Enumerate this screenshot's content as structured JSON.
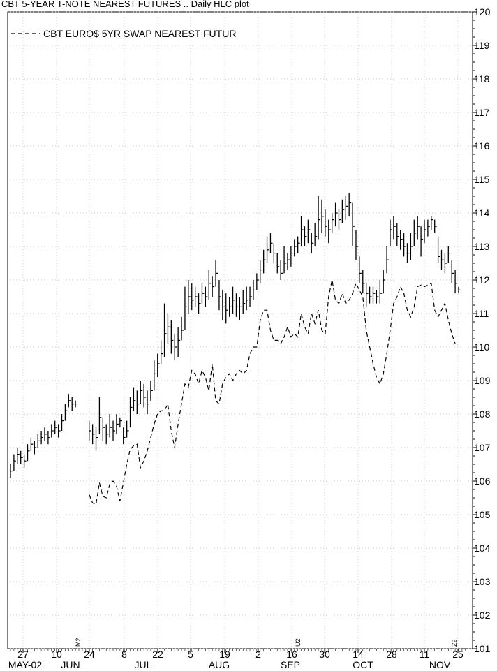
{
  "chart_data": {
    "type": "line",
    "title": "CBT 5-YEAR T-NOTE NEAREST FUTURES .. Daily HLC plot",
    "legend": {
      "position": "top-left",
      "entries": [
        "CBT EURO$ 5YR SWAP NEAREST FUTUR"
      ]
    },
    "y_axis": {
      "position": "right",
      "ylim": [
        101,
        120
      ],
      "ticks": [
        101,
        102,
        103,
        104,
        105,
        106,
        107,
        108,
        109,
        110,
        111,
        112,
        113,
        114,
        115,
        116,
        117,
        118,
        119,
        120
      ]
    },
    "x_axis": {
      "day_labels": [
        "27",
        "10",
        "24",
        "8",
        "22",
        "5",
        "19",
        "2",
        "16",
        "30",
        "14",
        "28",
        "11",
        "25"
      ],
      "month_labels": [
        "MAY-02",
        "JUN",
        "JUL",
        "AUG",
        "SEP",
        "OCT",
        "NOV"
      ],
      "contract_marks": [
        "M2",
        "U2",
        "Z2"
      ]
    },
    "grid": true,
    "series": [
      {
        "kind": "hlc",
        "bars": [
          [
            106.5,
            106.1,
            106.3
          ],
          [
            106.8,
            106.3,
            106.6
          ],
          [
            107.0,
            106.5,
            106.8
          ],
          [
            106.9,
            106.5,
            106.7
          ],
          [
            106.8,
            106.4,
            106.6
          ],
          [
            107.1,
            106.6,
            106.9
          ],
          [
            107.3,
            106.9,
            107.1
          ],
          [
            107.2,
            106.8,
            107.0
          ],
          [
            107.4,
            107.0,
            107.2
          ],
          [
            107.5,
            107.1,
            107.3
          ],
          [
            107.6,
            107.2,
            107.4
          ],
          [
            107.5,
            107.1,
            107.3
          ],
          [
            107.7,
            107.3,
            107.5
          ],
          [
            107.8,
            107.4,
            107.6
          ],
          [
            107.7,
            107.3,
            107.5
          ],
          [
            108.0,
            107.5,
            107.8
          ],
          [
            108.3,
            107.8,
            108.1
          ],
          [
            108.6,
            108.2,
            108.4
          ],
          [
            108.5,
            108.1,
            108.3
          ],
          [
            108.4,
            108.2,
            108.3
          ],
          [
            null,
            null,
            null
          ],
          [
            null,
            null,
            null
          ],
          [
            null,
            null,
            null
          ],
          [
            107.8,
            107.2,
            107.5
          ],
          [
            107.7,
            107.1,
            107.4
          ],
          [
            107.6,
            106.9,
            107.3
          ],
          [
            108.5,
            107.4,
            107.9
          ],
          [
            107.9,
            107.2,
            107.6
          ],
          [
            107.7,
            107.1,
            107.4
          ],
          [
            108.0,
            107.3,
            107.6
          ],
          [
            107.8,
            107.2,
            107.5
          ],
          [
            108.0,
            107.4,
            107.7
          ],
          [
            107.9,
            107.6,
            107.8
          ],
          [
            107.6,
            107.1,
            107.3
          ],
          [
            107.8,
            107.3,
            107.5
          ],
          [
            108.5,
            107.6,
            108.2
          ],
          [
            108.8,
            108.1,
            108.4
          ],
          [
            108.7,
            108.0,
            108.3
          ],
          [
            109.0,
            108.3,
            108.7
          ],
          [
            108.9,
            108.2,
            108.5
          ],
          [
            108.7,
            108.0,
            108.3
          ],
          [
            109.0,
            108.4,
            108.7
          ],
          [
            109.6,
            108.7,
            109.2
          ],
          [
            109.8,
            109.1,
            109.5
          ],
          [
            110.2,
            109.5,
            109.8
          ],
          [
            111.3,
            109.7,
            110.4
          ],
          [
            111.0,
            110.1,
            110.6
          ],
          [
            110.8,
            109.8,
            110.2
          ],
          [
            110.4,
            109.6,
            110.0
          ],
          [
            110.6,
            109.7,
            110.2
          ],
          [
            110.9,
            110.2,
            110.5
          ],
          [
            111.8,
            110.5,
            111.2
          ],
          [
            112.0,
            111.0,
            111.5
          ],
          [
            111.9,
            111.1,
            111.4
          ],
          [
            111.8,
            111.2,
            111.5
          ],
          [
            111.6,
            111.0,
            111.3
          ],
          [
            111.9,
            111.3,
            111.6
          ],
          [
            111.8,
            111.2,
            111.5
          ],
          [
            112.3,
            111.4,
            111.9
          ],
          [
            112.1,
            111.5,
            111.8
          ],
          [
            112.6,
            111.8,
            112.2
          ],
          [
            112.0,
            111.1,
            111.5
          ],
          [
            111.7,
            110.8,
            111.2
          ],
          [
            111.6,
            110.7,
            111.1
          ],
          [
            111.5,
            110.9,
            111.2
          ],
          [
            111.8,
            111.0,
            111.4
          ],
          [
            111.6,
            110.9,
            111.2
          ],
          [
            111.5,
            110.8,
            111.2
          ],
          [
            111.7,
            111.0,
            111.3
          ],
          [
            111.8,
            111.1,
            111.4
          ],
          [
            111.8,
            111.2,
            111.5
          ],
          [
            112.0,
            111.4,
            111.7
          ],
          [
            112.2,
            111.7,
            112.0
          ],
          [
            112.6,
            111.9,
            112.3
          ],
          [
            112.9,
            112.2,
            112.6
          ],
          [
            113.3,
            112.5,
            112.9
          ],
          [
            113.4,
            112.8,
            113.1
          ],
          [
            113.1,
            112.5,
            112.8
          ],
          [
            112.8,
            112.2,
            112.4
          ],
          [
            112.6,
            112.0,
            112.2
          ],
          [
            113.0,
            112.2,
            112.5
          ],
          [
            112.8,
            112.3,
            112.6
          ],
          [
            113.0,
            112.4,
            112.8
          ],
          [
            113.2,
            112.7,
            113.0
          ],
          [
            113.3,
            112.8,
            113.1
          ],
          [
            113.9,
            113.0,
            113.5
          ],
          [
            113.6,
            113.0,
            113.3
          ],
          [
            113.8,
            113.1,
            113.5
          ],
          [
            113.4,
            112.8,
            113.1
          ],
          [
            113.7,
            113.0,
            113.3
          ],
          [
            114.5,
            113.2,
            113.8
          ],
          [
            114.4,
            113.4,
            113.9
          ],
          [
            114.1,
            113.3,
            113.6
          ],
          [
            113.8,
            113.1,
            113.5
          ],
          [
            114.0,
            113.4,
            113.8
          ],
          [
            114.3,
            113.6,
            114.0
          ],
          [
            114.1,
            113.5,
            113.8
          ],
          [
            114.4,
            113.7,
            114.1
          ],
          [
            114.5,
            113.8,
            114.2
          ],
          [
            114.6,
            113.9,
            114.3
          ],
          [
            114.3,
            113.0,
            113.6
          ],
          [
            113.5,
            112.6,
            113.0
          ],
          [
            112.7,
            111.9,
            112.2
          ],
          [
            112.3,
            111.6,
            111.9
          ],
          [
            111.9,
            111.2,
            111.6
          ],
          [
            111.8,
            111.3,
            111.5
          ],
          [
            111.8,
            111.3,
            111.6
          ],
          [
            111.7,
            111.3,
            111.5
          ],
          [
            112.0,
            111.3,
            111.6
          ],
          [
            112.3,
            111.6,
            112.0
          ],
          [
            113.0,
            112.2,
            112.6
          ],
          [
            113.8,
            113.0,
            113.5
          ],
          [
            113.9,
            113.2,
            113.6
          ],
          [
            113.7,
            113.0,
            113.3
          ],
          [
            113.5,
            112.9,
            113.2
          ],
          [
            113.4,
            112.7,
            113.0
          ],
          [
            113.1,
            112.5,
            112.8
          ],
          [
            113.4,
            112.6,
            113.0
          ],
          [
            113.8,
            113.0,
            113.4
          ],
          [
            113.9,
            113.2,
            113.6
          ],
          [
            113.6,
            112.7,
            113.2
          ],
          [
            113.8,
            113.1,
            113.5
          ],
          [
            113.8,
            113.3,
            113.6
          ],
          [
            113.9,
            113.5,
            113.8
          ],
          [
            113.8,
            113.4,
            113.6
          ],
          [
            113.3,
            112.5,
            112.7
          ],
          [
            112.9,
            112.3,
            112.6
          ],
          [
            112.8,
            112.2,
            112.5
          ],
          [
            113.0,
            112.5,
            112.8
          ],
          [
            112.6,
            111.9,
            112.2
          ],
          [
            112.3,
            111.6,
            111.9
          ],
          [
            111.8,
            111.6,
            111.7
          ]
        ]
      },
      {
        "name": "CBT EURO$ 5YR SWAP NEAREST FUTUR",
        "kind": "line",
        "style": "dashed",
        "values": [
          null,
          null,
          null,
          null,
          null,
          null,
          null,
          null,
          null,
          null,
          null,
          null,
          null,
          null,
          null,
          null,
          null,
          null,
          null,
          null,
          null,
          null,
          null,
          105.6,
          105.35,
          105.3,
          105.95,
          105.55,
          105.5,
          105.9,
          106.0,
          105.85,
          105.4,
          105.95,
          106.5,
          106.95,
          107.05,
          107.1,
          106.4,
          106.6,
          106.9,
          107.3,
          107.7,
          108.0,
          108.1,
          108.1,
          108.3,
          107.5,
          107.0,
          107.7,
          108.3,
          108.9,
          108.8,
          109.3,
          109.2,
          108.9,
          109.3,
          109.1,
          108.7,
          109.5,
          108.4,
          108.3,
          108.9,
          109.1,
          109.2,
          109.0,
          109.2,
          109.3,
          109.2,
          109.3,
          109.8,
          110.0,
          110.0,
          110.8,
          111.1,
          111.1,
          110.5,
          110.2,
          110.2,
          110.1,
          110.3,
          110.6,
          110.3,
          110.4,
          110.3,
          111.0,
          110.6,
          110.4,
          111.0,
          110.7,
          111.1,
          110.5,
          110.4,
          111.5,
          112.0,
          111.4,
          111.3,
          111.6,
          111.3,
          111.4,
          111.6,
          111.9,
          111.7,
          111.5,
          110.5,
          110.0,
          109.5,
          109.1,
          108.9,
          109.2,
          109.8,
          110.5,
          111.3,
          111.5,
          111.8,
          111.6,
          111.1,
          110.9,
          111.2,
          111.8,
          111.85,
          111.8,
          111.85,
          111.9,
          111.1,
          110.9,
          111.1,
          111.3,
          110.8,
          110.4,
          110.1
        ]
      }
    ]
  }
}
